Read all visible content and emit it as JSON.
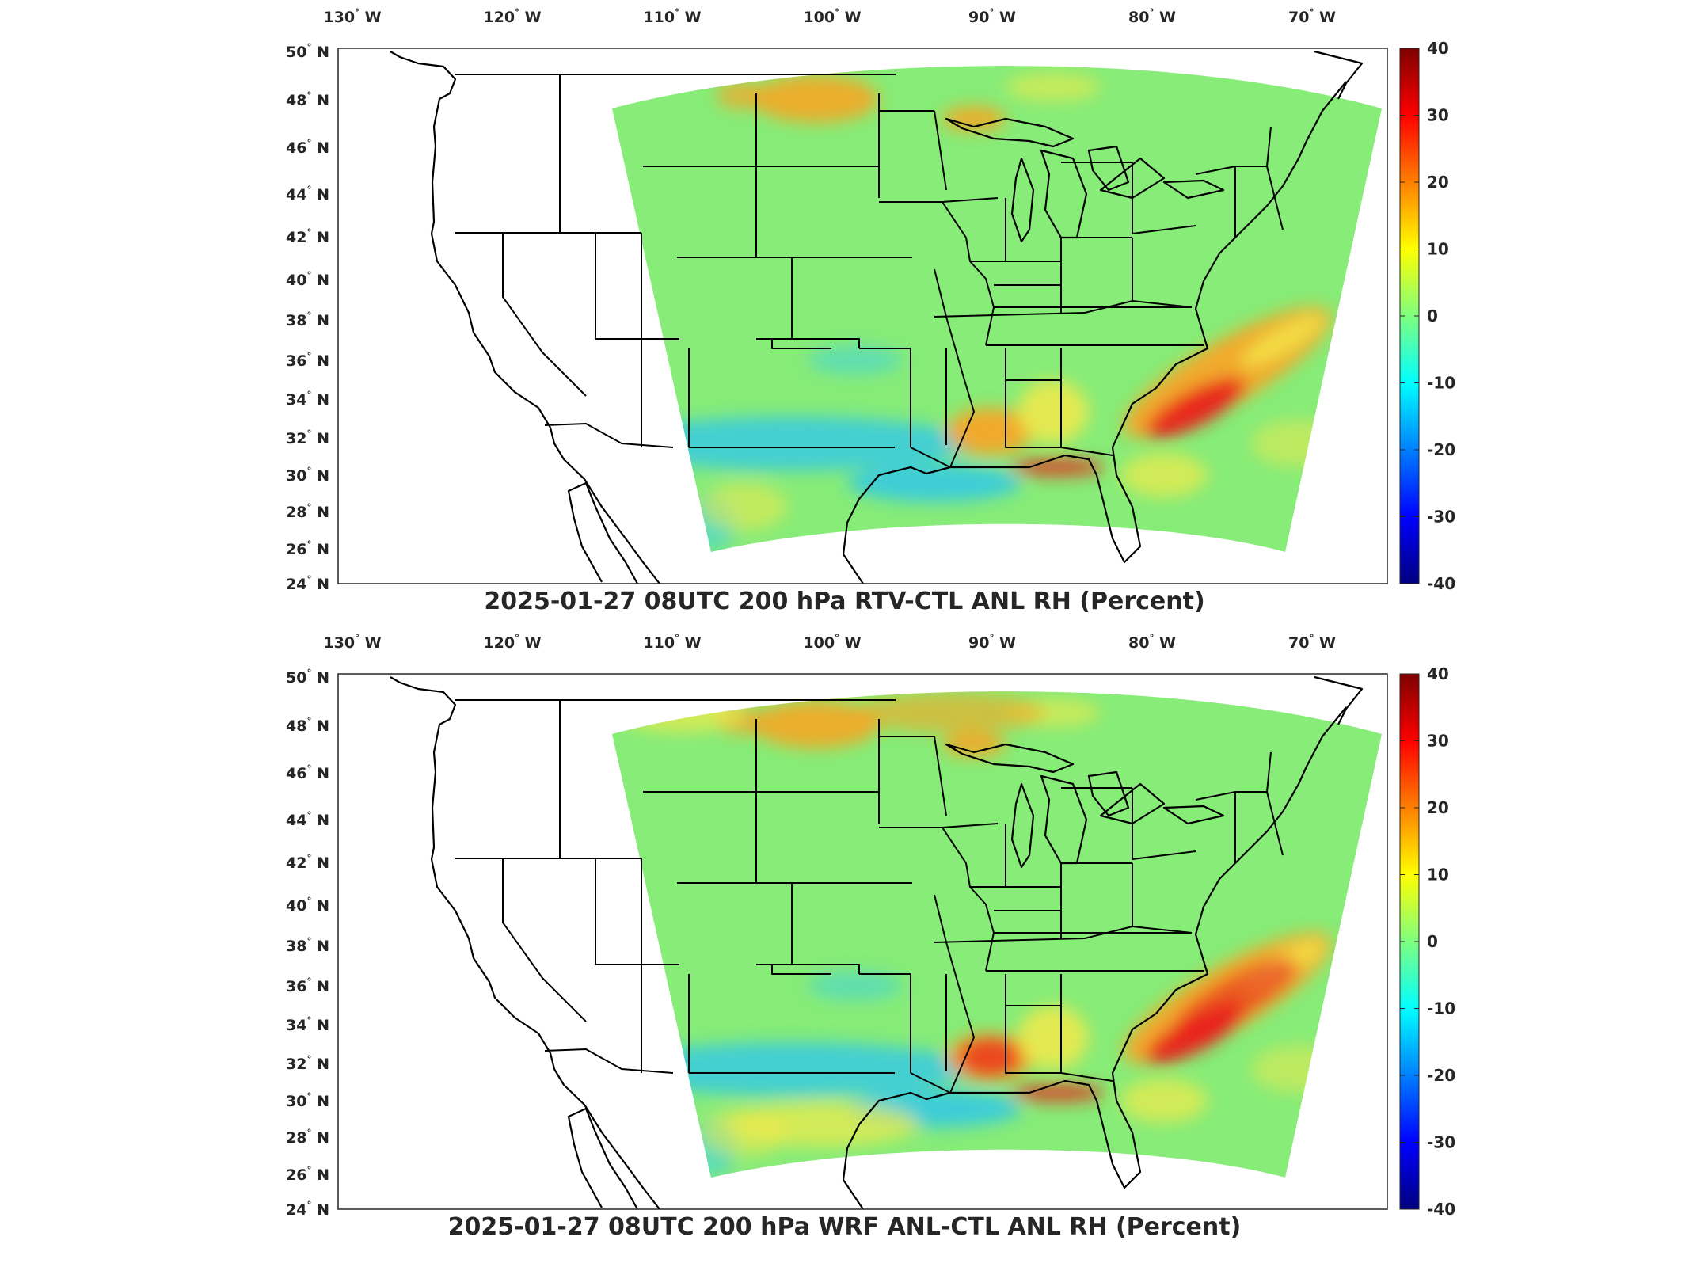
{
  "domain": "Map",
  "colorbar": {
    "ticks": [
      "40",
      "30",
      "20",
      "10",
      "0",
      "-10",
      "-20",
      "-30",
      "-40"
    ],
    "colors": [
      "#00007f",
      "#0000ff",
      "#007fff",
      "#00ffff",
      "#7fff7f",
      "#ffff00",
      "#ff7f00",
      "#ff0000",
      "#7f0000"
    ],
    "range": [
      -40,
      40
    ]
  },
  "axes": {
    "lon_labels": [
      "130",
      "120",
      "110",
      "100",
      "90",
      "80",
      "70"
    ],
    "lon_suffix": "W",
    "lat_labels": [
      "50",
      "48",
      "46",
      "44",
      "42",
      "40",
      "38",
      "36",
      "34",
      "32",
      "30",
      "28",
      "26",
      "24"
    ],
    "lat_suffix": "N",
    "degree_symbol": "°"
  },
  "field_colors": {
    "background": "#87ec78",
    "moist_high": "#e8201a",
    "moist_mid": "#fca321",
    "moist_low": "#f2e94a",
    "dry_low": "#4fd7c7",
    "dry_mid": "#2bc6ef"
  },
  "panels": [
    {
      "id": "top",
      "title": "2025-01-27 08UTC 200 hPa RTV-CTL ANL RH (Percent)"
    },
    {
      "id": "bottom",
      "title": "2025-01-27 08UTC 200 hPa WRF ANL-CTL ANL RH (Percent)"
    }
  ]
}
